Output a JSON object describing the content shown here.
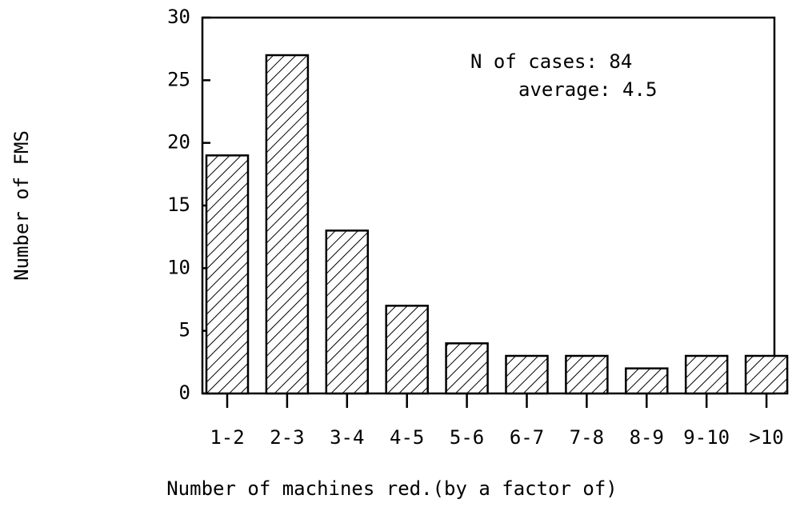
{
  "chart_data": {
    "type": "bar",
    "x_label": "Number of machines red.(by a factor of)",
    "y_label": "Number of FMS",
    "annotations": [
      "N of cases: 84",
      "average: 4.5"
    ],
    "categories": [
      "1-2",
      "2-3",
      "3-4",
      "4-5",
      "5-6",
      "6-7",
      "7-8",
      "8-9",
      "9-10",
      ">10"
    ],
    "values": [
      19,
      27,
      13,
      7,
      4,
      3,
      3,
      2,
      3,
      3
    ],
    "color": "#000000",
    "ylim": [
      0,
      30
    ],
    "yticks": [
      0,
      5,
      10,
      15,
      20,
      25,
      30
    ],
    "grid": false
  }
}
